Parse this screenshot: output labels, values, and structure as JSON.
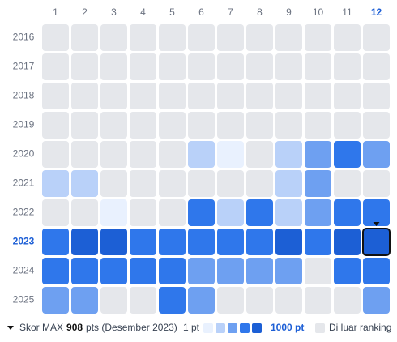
{
  "heatmap": {
    "columns": [
      "1",
      "2",
      "3",
      "4",
      "5",
      "6",
      "7",
      "8",
      "9",
      "10",
      "11",
      "12"
    ],
    "rows": [
      "2016",
      "2017",
      "2018",
      "2019",
      "2020",
      "2021",
      "2022",
      "2023",
      "2024",
      "2025"
    ],
    "palette": [
      "#e9f1fe",
      "#b9d1f9",
      "#6ea0f1",
      "#2f77eb",
      "#1c5fd5"
    ],
    "empty_color": "#e5e7eb",
    "selected_row": 7,
    "selected_col": 11,
    "levels": [
      [
        null,
        null,
        null,
        null,
        null,
        null,
        null,
        null,
        null,
        null,
        null,
        null
      ],
      [
        null,
        null,
        null,
        null,
        null,
        null,
        null,
        null,
        null,
        null,
        null,
        null
      ],
      [
        null,
        null,
        null,
        null,
        null,
        null,
        null,
        null,
        null,
        null,
        null,
        null
      ],
      [
        null,
        null,
        null,
        null,
        null,
        null,
        null,
        null,
        null,
        null,
        null,
        null
      ],
      [
        null,
        null,
        null,
        null,
        null,
        2,
        1,
        null,
        2,
        3,
        4,
        3
      ],
      [
        2,
        2,
        null,
        null,
        null,
        null,
        null,
        null,
        2,
        3,
        null,
        null
      ],
      [
        null,
        null,
        1,
        null,
        null,
        4,
        2,
        4,
        2,
        3,
        4,
        4
      ],
      [
        4,
        5,
        5,
        4,
        4,
        4,
        4,
        4,
        5,
        4,
        5,
        5
      ],
      [
        4,
        4,
        4,
        4,
        4,
        3,
        3,
        3,
        3,
        null,
        4,
        4
      ],
      [
        3,
        3,
        null,
        null,
        4,
        3,
        null,
        null,
        null,
        null,
        null,
        3
      ]
    ]
  },
  "footer": {
    "max_label": "Skor MAX",
    "max_value": "908",
    "max_suffix": "pts (Desember 2023)",
    "legend_min": "1 pt",
    "legend_max": "1000 pt",
    "legend_empty": "Di luar ranking"
  }
}
